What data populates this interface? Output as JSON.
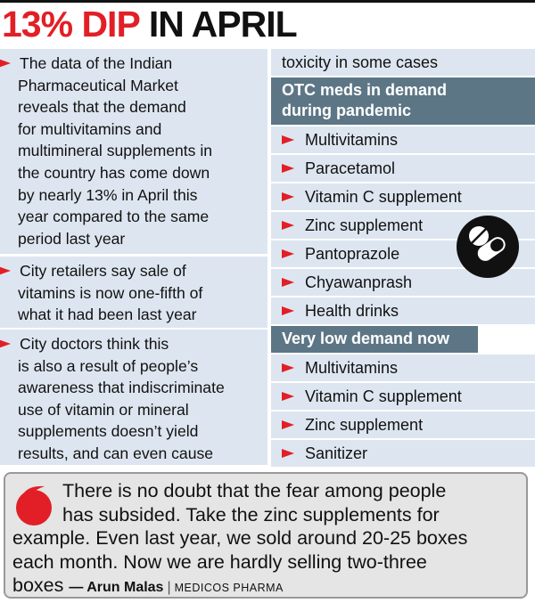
{
  "title": {
    "highlight": "13% DIP",
    "rest": "IN APRIL"
  },
  "left_blocks": [
    {
      "lines": [
        "The data of the Indian",
        "Pharmaceutical Market",
        "reveals that the demand",
        "for multivitamins and",
        "multimineral supplements in",
        "the country has come down",
        "by nearly 13% in April this",
        "year compared to the same",
        "period last year"
      ]
    },
    {
      "lines": [
        "City retailers say sale of",
        "vitamins is now one-fifth of",
        "what it had been last year"
      ]
    },
    {
      "lines": [
        "City doctors think this",
        "is also a result of people’s",
        "awareness that indiscriminate",
        "use of vitamin or mineral",
        "supplements doesn’t yield",
        "results, and can even cause"
      ]
    }
  ],
  "continuation": "toxicity in some cases",
  "sections": [
    {
      "heading": [
        "OTC meds in demand",
        "during pandemic"
      ],
      "items": [
        "Multivitamins",
        "Paracetamol",
        "Vitamin C supplement",
        "Zinc supplement",
        "Pantoprazole",
        "Chyawanprash",
        "Health drinks"
      ]
    },
    {
      "heading": [
        "Very low demand now"
      ],
      "items": [
        "Multivitamins",
        "Vitamin C supplement",
        "Zinc supplement",
        "Sanitizer"
      ]
    }
  ],
  "quote": {
    "lines": [
      "There is no doubt that the fear among people",
      "has subsided. Take the zinc supplements for",
      "example. Even last year, we sold around 20-25 boxes",
      "each month. Now we are hardly selling two-three",
      "boxes"
    ],
    "attribution": "— Arun Malas",
    "divider": "|",
    "source": "MEDICOS PHARMA"
  }
}
